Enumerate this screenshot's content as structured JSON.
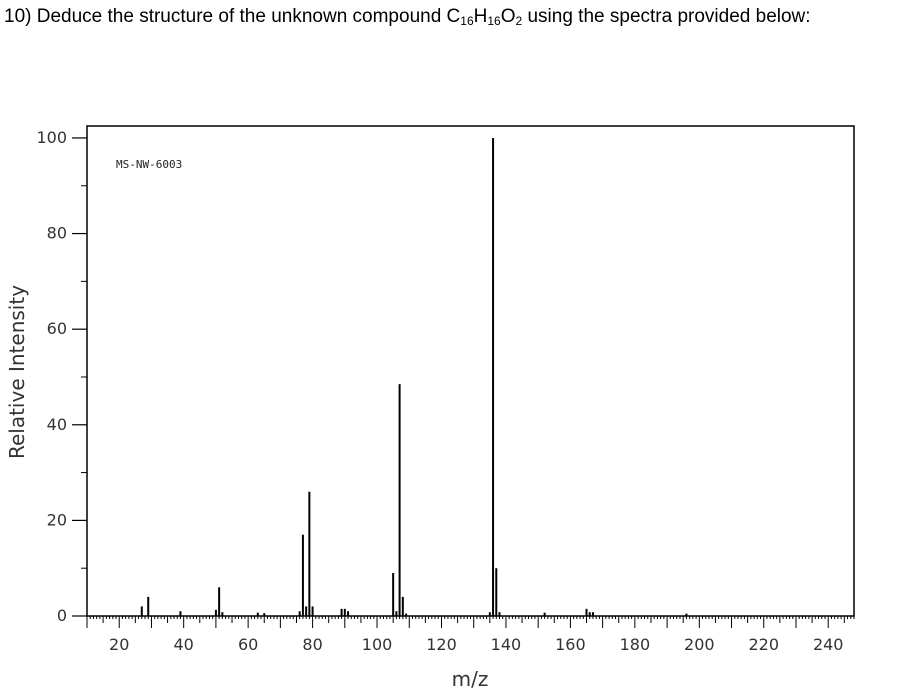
{
  "question": {
    "prefix": "10) Deduce the structure of the unknown compound C",
    "sub1": "16",
    "mid1": "H",
    "sub2": "16",
    "mid2": "O",
    "sub3": "2",
    "suffix": " using the spectra provided below:"
  },
  "chart_data": {
    "type": "bar",
    "spectrum_id": "MS-NW-6003",
    "xlabel": "m/z",
    "ylabel": "Relative Intensity",
    "xlim": [
      10,
      248
    ],
    "ylim": [
      0,
      102.5
    ],
    "x_ticks": [
      20,
      40,
      60,
      80,
      100,
      120,
      140,
      160,
      180,
      200,
      220,
      240
    ],
    "y_ticks": [
      0,
      20,
      40,
      60,
      80,
      100
    ],
    "peaks": [
      {
        "mz": 27,
        "intensity": 2
      },
      {
        "mz": 29,
        "intensity": 4
      },
      {
        "mz": 39,
        "intensity": 1
      },
      {
        "mz": 50,
        "intensity": 1.3
      },
      {
        "mz": 51,
        "intensity": 6
      },
      {
        "mz": 52,
        "intensity": 0.8
      },
      {
        "mz": 63,
        "intensity": 0.7
      },
      {
        "mz": 65,
        "intensity": 0.6
      },
      {
        "mz": 76,
        "intensity": 1
      },
      {
        "mz": 77,
        "intensity": 17
      },
      {
        "mz": 78,
        "intensity": 2
      },
      {
        "mz": 79,
        "intensity": 26
      },
      {
        "mz": 80,
        "intensity": 2
      },
      {
        "mz": 89,
        "intensity": 1.5
      },
      {
        "mz": 90,
        "intensity": 1.5
      },
      {
        "mz": 91,
        "intensity": 1
      },
      {
        "mz": 105,
        "intensity": 9
      },
      {
        "mz": 106,
        "intensity": 1
      },
      {
        "mz": 107,
        "intensity": 48.5
      },
      {
        "mz": 108,
        "intensity": 4
      },
      {
        "mz": 109,
        "intensity": 0.5
      },
      {
        "mz": 135,
        "intensity": 0.8
      },
      {
        "mz": 136,
        "intensity": 100
      },
      {
        "mz": 137,
        "intensity": 10
      },
      {
        "mz": 138,
        "intensity": 0.8
      },
      {
        "mz": 152,
        "intensity": 0.7
      },
      {
        "mz": 165,
        "intensity": 1.5
      },
      {
        "mz": 166,
        "intensity": 0.8
      },
      {
        "mz": 167,
        "intensity": 0.8
      },
      {
        "mz": 196,
        "intensity": 0.5
      }
    ]
  }
}
